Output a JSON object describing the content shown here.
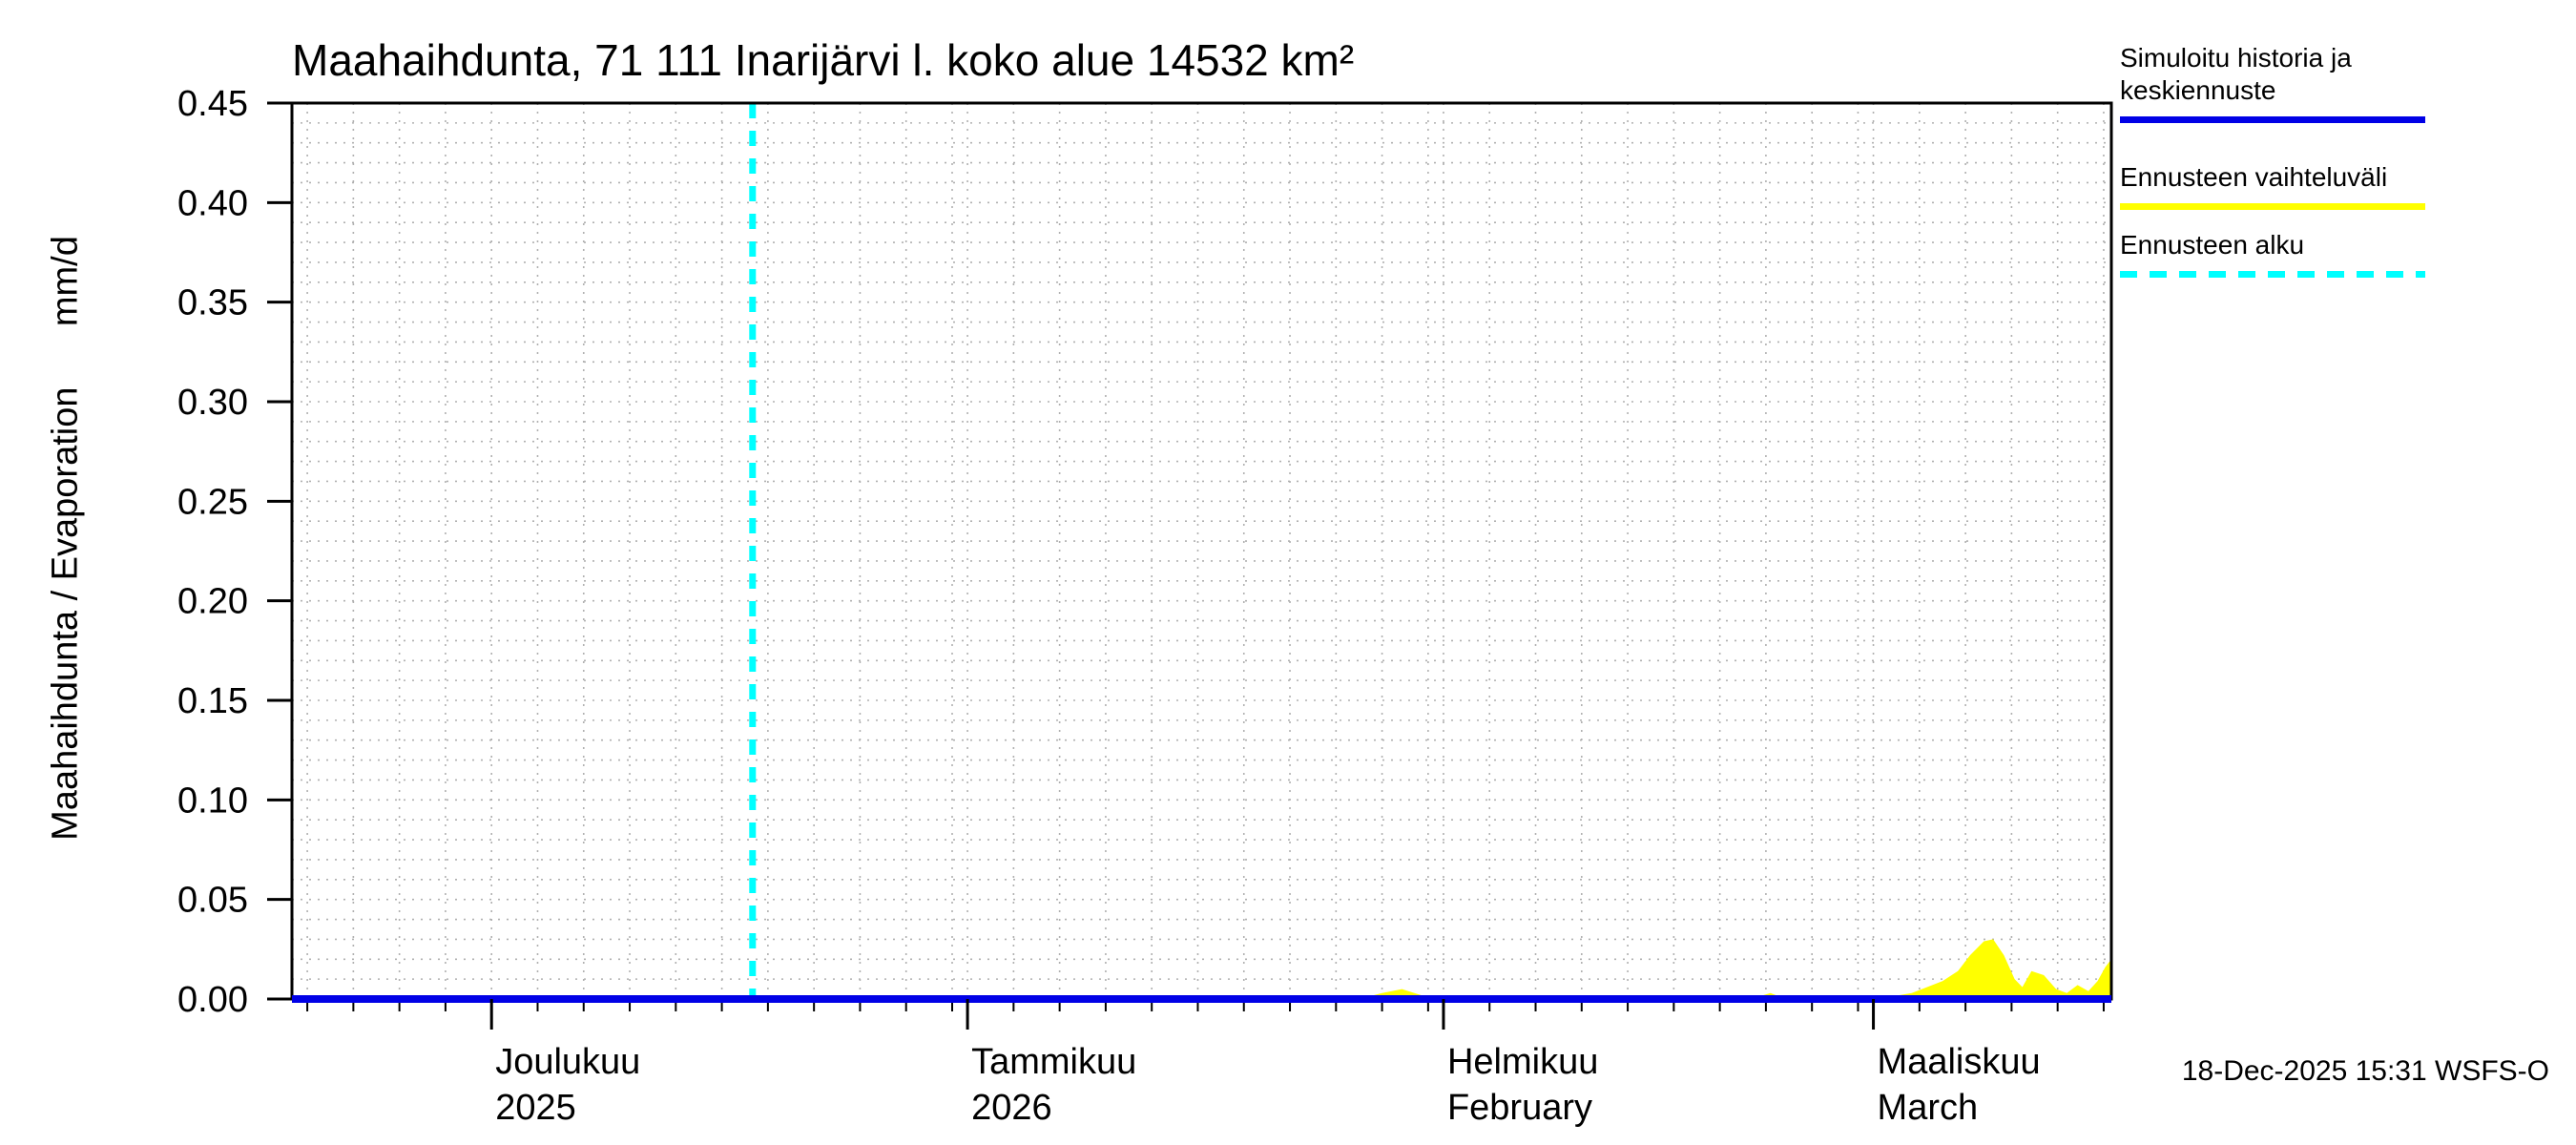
{
  "chart_data": {
    "type": "area",
    "title": "Maahaihdunta, 71 111 Inarijärvi l. koko alue 14532 km²",
    "ylabel": "Maahaihdunta / Evaporation      mm/d",
    "ylim": [
      0,
      0.45
    ],
    "y_major_step": 0.05,
    "y_minor_step": 0.01,
    "y_tick_labels": [
      "0.00",
      "0.05",
      "0.10",
      "0.15",
      "0.20",
      "0.25",
      "0.30",
      "0.35",
      "0.40",
      "0.45"
    ],
    "grid_color": "#b0b0b0",
    "frame_color": "#000000",
    "x_axis": {
      "total_days": 118.5,
      "grid_step_days": 3,
      "months": [
        {
          "label": "Joulukuu",
          "sublabel": "2025",
          "start_day": 13,
          "length": 31
        },
        {
          "label": "Tammikuu",
          "sublabel": "2026",
          "start_day": 44,
          "length": 31
        },
        {
          "label": "Helmikuu",
          "sublabel": "February",
          "start_day": 75,
          "length": 28
        },
        {
          "label": "Maaliskuu",
          "sublabel": "March",
          "start_day": 103,
          "length": 31
        }
      ]
    },
    "forecast_start": {
      "day": 30,
      "date": "18-Dec-2025",
      "color": "#00ffff",
      "style": "dashed-vertical"
    },
    "series": [
      {
        "name": "Simuloitu historia ja keskiennuste",
        "type": "line",
        "color": "#0000e6",
        "unit": "mm/d",
        "points": [
          [
            0,
            0.0
          ],
          [
            118.5,
            0.0
          ]
        ]
      },
      {
        "name": "Ennusteen vaihteluväli",
        "type": "area",
        "color": "#ffff00",
        "unit": "mm/d",
        "points": [
          [
            0,
            0
          ],
          [
            69.5,
            0
          ],
          [
            71,
            0.003
          ],
          [
            72.3,
            0.005
          ],
          [
            73.5,
            0.002
          ],
          [
            74.5,
            0
          ],
          [
            95,
            0
          ],
          [
            96.3,
            0.003
          ],
          [
            97.3,
            0
          ],
          [
            102.5,
            0
          ],
          [
            104,
            0.001
          ],
          [
            105.5,
            0.003
          ],
          [
            106.5,
            0.006
          ],
          [
            107.5,
            0.009
          ],
          [
            108.5,
            0.014
          ],
          [
            109.3,
            0.022
          ],
          [
            110.2,
            0.029
          ],
          [
            110.8,
            0.03
          ],
          [
            111.5,
            0.022
          ],
          [
            112.2,
            0.01
          ],
          [
            112.7,
            0.006
          ],
          [
            113.3,
            0.014
          ],
          [
            114.1,
            0.012
          ],
          [
            114.9,
            0.005
          ],
          [
            115.6,
            0.003
          ],
          [
            116.3,
            0.007
          ],
          [
            117.0,
            0.004
          ],
          [
            117.6,
            0.009
          ],
          [
            118.1,
            0.016
          ],
          [
            118.5,
            0.02
          ]
        ]
      }
    ]
  },
  "legend": {
    "items": [
      {
        "label": "Simuloitu historia ja keskiennuste",
        "swatch": "solid-line",
        "color": "#0000e6"
      },
      {
        "label": "Ennusteen vaihteluväli",
        "swatch": "solid-line",
        "color": "#ffff00"
      },
      {
        "label": "Ennusteen alku",
        "swatch": "dashed-line",
        "color": "#00ffff"
      }
    ]
  },
  "footer": {
    "timestamp": "18-Dec-2025 15:31 WSFS-O"
  }
}
